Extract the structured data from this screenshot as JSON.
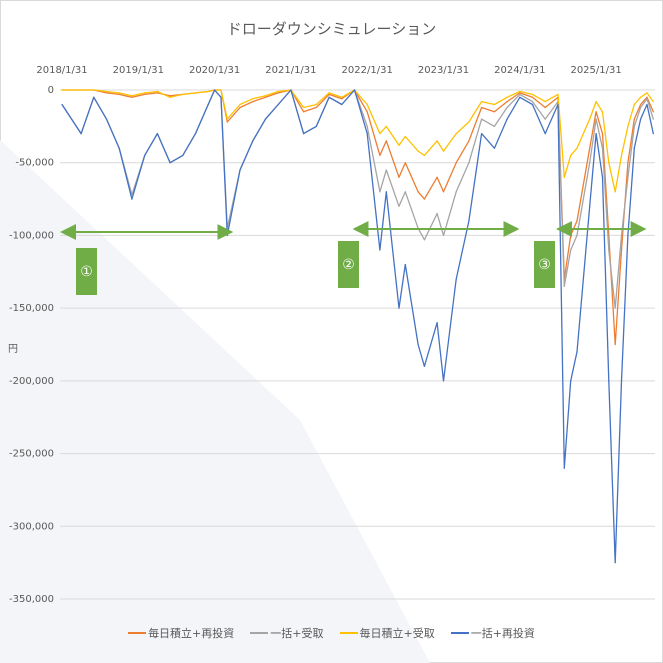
{
  "chart_data": {
    "type": "line",
    "title": "ドローダウンシミュレーション",
    "ylabel": "円",
    "ylim": [
      -350000,
      0
    ],
    "yticks": [
      0,
      -50000,
      -100000,
      -150000,
      -200000,
      -250000,
      -300000,
      -350000
    ],
    "ytick_labels": [
      "0",
      "-50,000",
      "-100,000",
      "-150,000",
      "-200,000",
      "-250,000",
      "-300,000",
      "-350,000"
    ],
    "negative_label_color": "#ff0000",
    "xaxis_position": "top",
    "xticks": [
      "2018/1/31",
      "2019/1/31",
      "2020/1/31",
      "2021/1/31",
      "2022/1/31",
      "2023/1/31",
      "2024/1/31",
      "2025/1/31"
    ],
    "grid": true,
    "legend_position": "bottom",
    "x": [
      "2018-01",
      "2018-04",
      "2018-06",
      "2018-08",
      "2018-10",
      "2018-12",
      "2019-02",
      "2019-04",
      "2019-06",
      "2019-08",
      "2019-10",
      "2019-12",
      "2020-01",
      "2020-02",
      "2020-03",
      "2020-05",
      "2020-07",
      "2020-09",
      "2020-11",
      "2021-01",
      "2021-03",
      "2021-05",
      "2021-07",
      "2021-09",
      "2021-11",
      "2022-01",
      "2022-03",
      "2022-04",
      "2022-06",
      "2022-07",
      "2022-09",
      "2022-10",
      "2022-12",
      "2023-01",
      "2023-03",
      "2023-05",
      "2023-07",
      "2023-09",
      "2023-11",
      "2024-01",
      "2024-03",
      "2024-05",
      "2024-07",
      "2024-08",
      "2024-09",
      "2024-10",
      "2024-12",
      "2025-01",
      "2025-02",
      "2025-03",
      "2025-04",
      "2025-05",
      "2025-06",
      "2025-07",
      "2025-08",
      "2025-09",
      "2025-10"
    ],
    "series": [
      {
        "name": "毎日積立+再投資",
        "color": "#ed7d31",
        "values": [
          0,
          0,
          0,
          -2000,
          -3000,
          -5000,
          -3000,
          -2000,
          -4000,
          -3000,
          -2000,
          -1000,
          0,
          0,
          -22000,
          -12000,
          -8000,
          -5000,
          -2000,
          0,
          -15000,
          -12000,
          -3000,
          -6000,
          0,
          -15000,
          -45000,
          -35000,
          -60000,
          -50000,
          -70000,
          -75000,
          -60000,
          -70000,
          -50000,
          -35000,
          -12000,
          -15000,
          -8000,
          -2000,
          -5000,
          -12000,
          -5000,
          -130000,
          -100000,
          -90000,
          -40000,
          -15000,
          -30000,
          -100000,
          -175000,
          -110000,
          -50000,
          -20000,
          -10000,
          -5000,
          -15000
        ]
      },
      {
        "name": "一括+受取",
        "color": "#a5a5a5",
        "values": [
          -10000,
          -30000,
          -5000,
          -20000,
          -40000,
          -72000,
          -45000,
          -30000,
          -50000,
          -45000,
          -30000,
          -10000,
          0,
          -5000,
          -95000,
          -55000,
          -35000,
          -20000,
          -10000,
          0,
          -30000,
          -25000,
          -5000,
          -10000,
          0,
          -25000,
          -70000,
          -55000,
          -80000,
          -70000,
          -95000,
          -103000,
          -85000,
          -100000,
          -70000,
          -50000,
          -20000,
          -25000,
          -12000,
          -3000,
          -8000,
          -20000,
          -8000,
          -135000,
          -110000,
          -100000,
          -50000,
          -20000,
          -40000,
          -110000,
          -150000,
          -100000,
          -60000,
          -25000,
          -12000,
          -6000,
          -20000
        ]
      },
      {
        "name": "毎日積立+受取",
        "color": "#ffc000",
        "values": [
          0,
          0,
          0,
          -1000,
          -2000,
          -4000,
          -2000,
          -1000,
          -5000,
          -3000,
          -2000,
          -1000,
          0,
          0,
          -20000,
          -10000,
          -6000,
          -4000,
          -1000,
          0,
          -12000,
          -10000,
          -2000,
          -5000,
          0,
          -10000,
          -30000,
          -25000,
          -38000,
          -32000,
          -42000,
          -45000,
          -35000,
          -42000,
          -30000,
          -22000,
          -8000,
          -10000,
          -5000,
          -1000,
          -3000,
          -8000,
          -3000,
          -60000,
          -45000,
          -40000,
          -20000,
          -8000,
          -15000,
          -50000,
          -70000,
          -45000,
          -25000,
          -10000,
          -5000,
          -2000,
          -8000
        ]
      },
      {
        "name": "一括+再投資",
        "color": "#4472c4",
        "values": [
          -10000,
          -30000,
          -5000,
          -20000,
          -40000,
          -75000,
          -45000,
          -30000,
          -50000,
          -45000,
          -30000,
          -10000,
          0,
          -5000,
          -100000,
          -55000,
          -35000,
          -20000,
          -10000,
          0,
          -30000,
          -25000,
          -5000,
          -10000,
          0,
          -30000,
          -110000,
          -70000,
          -150000,
          -120000,
          -175000,
          -190000,
          -160000,
          -200000,
          -130000,
          -90000,
          -30000,
          -40000,
          -20000,
          -5000,
          -10000,
          -30000,
          -10000,
          -260000,
          -200000,
          -180000,
          -80000,
          -30000,
          -60000,
          -200000,
          -325000,
          -200000,
          -100000,
          -40000,
          -20000,
          -10000,
          -30000
        ]
      }
    ],
    "annotations": [
      {
        "label": "①",
        "from": "2018-01",
        "to": "2020-03"
      },
      {
        "label": "②",
        "from": "2021-11",
        "to": "2023-12"
      },
      {
        "label": "③",
        "from": "2024-07",
        "to": "2025-08"
      }
    ],
    "annotation_color": "#70ad47"
  }
}
